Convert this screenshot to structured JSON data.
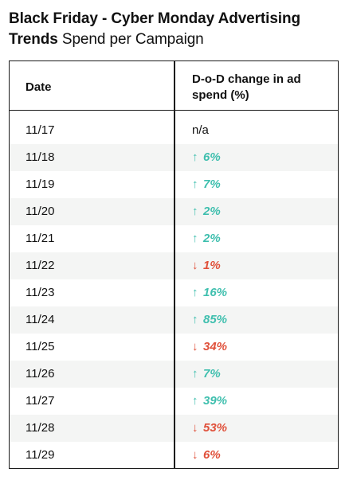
{
  "title": {
    "bold": "Black Friday - Cyber Monday Advertising Trends",
    "light": "Spend per Campaign"
  },
  "table": {
    "headers": {
      "date": "Date",
      "change": "D-o-D change in ad spend (%)"
    },
    "colors": {
      "up": "#3fbfae",
      "down": "#e0503a"
    },
    "rows": [
      {
        "date": "11/17",
        "change": "n/a",
        "dir": "none"
      },
      {
        "date": "11/18",
        "change": "6%",
        "dir": "up"
      },
      {
        "date": "11/19",
        "change": "7%",
        "dir": "up"
      },
      {
        "date": "11/20",
        "change": "2%",
        "dir": "up"
      },
      {
        "date": "11/21",
        "change": "2%",
        "dir": "up"
      },
      {
        "date": "11/22",
        "change": "1%",
        "dir": "down"
      },
      {
        "date": "11/23",
        "change": "16%",
        "dir": "up"
      },
      {
        "date": "11/24",
        "change": "85%",
        "dir": "up"
      },
      {
        "date": "11/25",
        "change": "34%",
        "dir": "down"
      },
      {
        "date": "11/26",
        "change": "7%",
        "dir": "up"
      },
      {
        "date": "11/27",
        "change": "39%",
        "dir": "up"
      },
      {
        "date": "11/28",
        "change": "53%",
        "dir": "down"
      },
      {
        "date": "11/29",
        "change": "6%",
        "dir": "down"
      }
    ]
  }
}
